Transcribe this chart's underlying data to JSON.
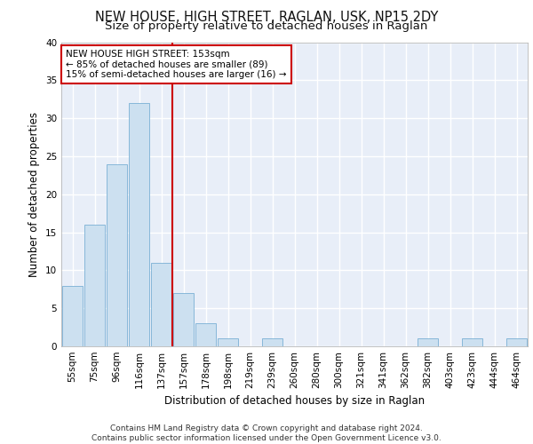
{
  "title1": "NEW HOUSE, HIGH STREET, RAGLAN, USK, NP15 2DY",
  "title2": "Size of property relative to detached houses in Raglan",
  "xlabel": "Distribution of detached houses by size in Raglan",
  "ylabel": "Number of detached properties",
  "bar_labels": [
    "55sqm",
    "75sqm",
    "96sqm",
    "116sqm",
    "137sqm",
    "157sqm",
    "178sqm",
    "198sqm",
    "219sqm",
    "239sqm",
    "260sqm",
    "280sqm",
    "300sqm",
    "321sqm",
    "341sqm",
    "362sqm",
    "382sqm",
    "403sqm",
    "423sqm",
    "444sqm",
    "464sqm"
  ],
  "bar_values": [
    8,
    16,
    24,
    32,
    11,
    7,
    3,
    1,
    0,
    1,
    0,
    0,
    0,
    0,
    0,
    0,
    1,
    0,
    1,
    0,
    1
  ],
  "bar_color": "#cce0f0",
  "bar_edgecolor": "#7ab0d4",
  "background_color": "#e8eef8",
  "grid_color": "#ffffff",
  "red_line_index": 4.5,
  "annotation_text": "NEW HOUSE HIGH STREET: 153sqm\n← 85% of detached houses are smaller (89)\n15% of semi-detached houses are larger (16) →",
  "annotation_box_color": "#ffffff",
  "annotation_box_edgecolor": "#cc0000",
  "ylim": [
    0,
    40
  ],
  "yticks": [
    0,
    5,
    10,
    15,
    20,
    25,
    30,
    35,
    40
  ],
  "footer_text": "Contains HM Land Registry data © Crown copyright and database right 2024.\nContains public sector information licensed under the Open Government Licence v3.0.",
  "red_line_color": "#cc0000",
  "title_fontsize": 10.5,
  "subtitle_fontsize": 9.5,
  "tick_fontsize": 7.5,
  "ylabel_fontsize": 8.5,
  "xlabel_fontsize": 8.5,
  "footer_fontsize": 6.5
}
